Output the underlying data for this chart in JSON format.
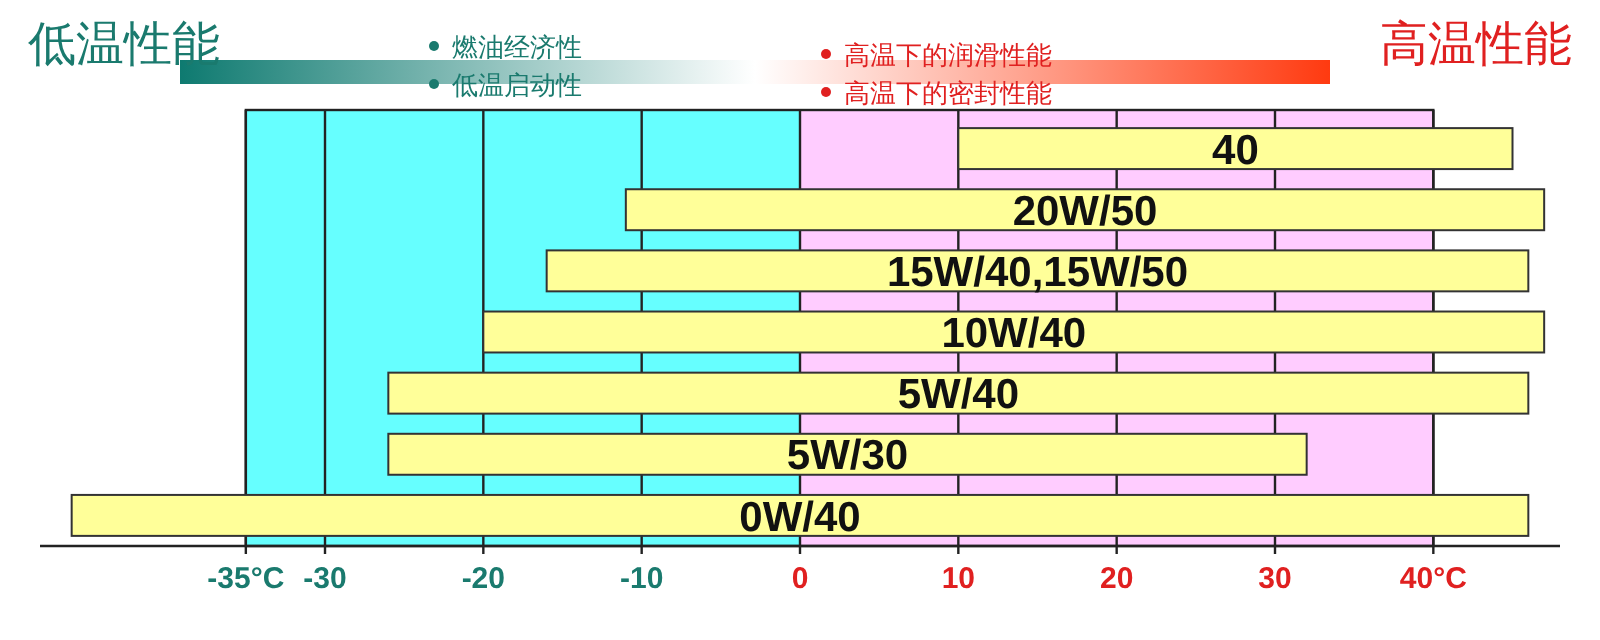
{
  "chart_data": {
    "type": "bar",
    "orientation": "horizontal",
    "categories": [
      "40",
      "20W/50",
      "15W/40,15W/50",
      "10W/40",
      "5W/40",
      "5W/30",
      "0W/40"
    ],
    "base": [
      10,
      -11,
      -16,
      -20,
      -26,
      -26,
      -46
    ],
    "values": [
      35,
      58,
      62,
      67,
      72,
      58,
      92
    ],
    "color": "#ffff99",
    "xlim": [
      -48,
      48
    ],
    "xticks": [
      {
        "value": -35,
        "label": "-35°C"
      },
      -30,
      -20,
      -10,
      0,
      10,
      20,
      30,
      {
        "value": 40,
        "label": "40°C"
      }
    ],
    "grid": "x",
    "bands": [
      {
        "axis": "x",
        "from": -35,
        "to": 0,
        "color": "#66ffff"
      },
      {
        "axis": "x",
        "from": 0,
        "to": 40,
        "color": "#ffccff"
      }
    ],
    "annotations": [
      "低温性能",
      "燃油经济性",
      "低温启动性",
      "高温下的润滑性能",
      "高温下的密封性能",
      "高温性能"
    ]
  }
}
